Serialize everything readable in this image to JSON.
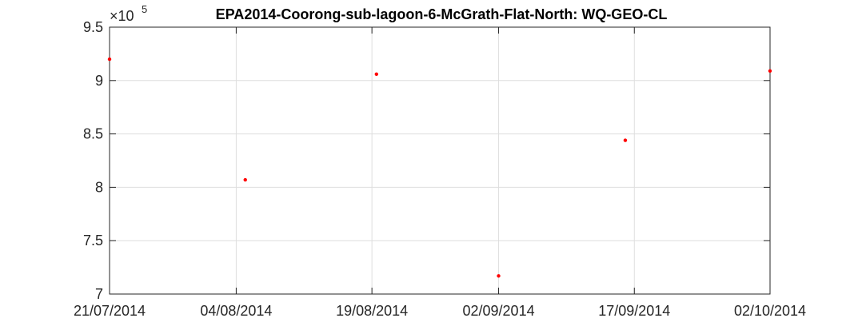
{
  "chart_data": {
    "type": "scatter",
    "title": "EPA2014-Coorong-sub-lagoon-6-McGrath-Flat-North: WQ-GEO-CL",
    "xlabel": "",
    "ylabel": "",
    "y_exponent": {
      "base": "×10",
      "power": "5"
    },
    "xlim_days": [
      0,
      73
    ],
    "ylim": [
      7,
      9.5
    ],
    "x_ticks": [
      {
        "day": 0,
        "label": "21/07/2014"
      },
      {
        "day": 14,
        "label": "04/08/2014"
      },
      {
        "day": 29,
        "label": "19/08/2014"
      },
      {
        "day": 43,
        "label": "02/09/2014"
      },
      {
        "day": 58,
        "label": "17/09/2014"
      },
      {
        "day": 73,
        "label": "02/10/2014"
      }
    ],
    "y_ticks": [
      {
        "value": 7,
        "label": "7"
      },
      {
        "value": 7.5,
        "label": "7.5"
      },
      {
        "value": 8,
        "label": "8"
      },
      {
        "value": 8.5,
        "label": "8.5"
      },
      {
        "value": 9,
        "label": "9"
      },
      {
        "value": 9.5,
        "label": "9.5"
      }
    ],
    "grid": true,
    "series": [
      {
        "name": "WQ-GEO-CL",
        "color": "#ff0000",
        "points": [
          {
            "day": 0,
            "y": 9.2
          },
          {
            "day": 15,
            "y": 8.07
          },
          {
            "day": 29.5,
            "y": 9.06
          },
          {
            "day": 43,
            "y": 7.17
          },
          {
            "day": 57,
            "y": 8.44
          },
          {
            "day": 73,
            "y": 9.09
          }
        ]
      }
    ]
  }
}
